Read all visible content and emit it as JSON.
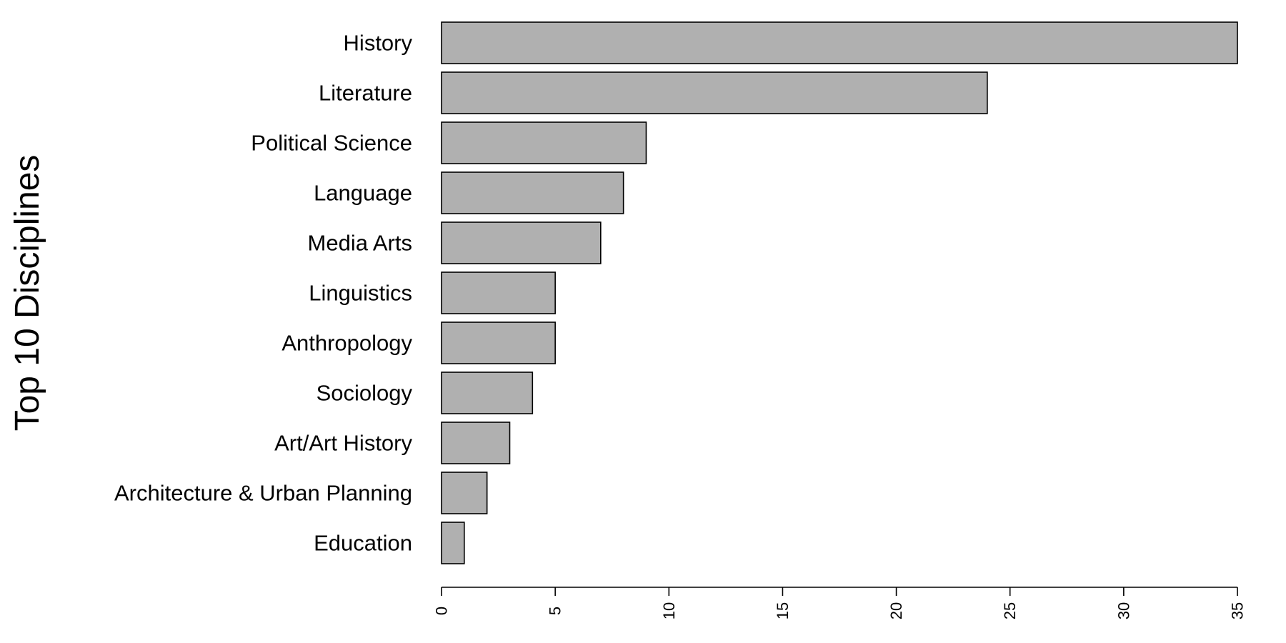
{
  "chart_data": {
    "type": "bar",
    "orientation": "horizontal",
    "categories": [
      "History",
      "Literature",
      "Political Science",
      "Language",
      "Media Arts",
      "Linguistics",
      "Anthropology",
      "Sociology",
      "Art/Art History",
      "Architecture & Urban Planning",
      "Education"
    ],
    "values": [
      35,
      24,
      9,
      8,
      7,
      5,
      5,
      4,
      3,
      2,
      1
    ],
    "title": "",
    "xlabel": "",
    "ylabel": "Top 10 Disciplines",
    "xlim": [
      0,
      35
    ],
    "xticks": [
      0,
      5,
      10,
      15,
      20,
      25,
      30,
      35
    ],
    "grid": false,
    "legend": "none",
    "colors": {
      "bar_fill": "#b0b0b0",
      "bar_stroke": "#000000"
    }
  }
}
